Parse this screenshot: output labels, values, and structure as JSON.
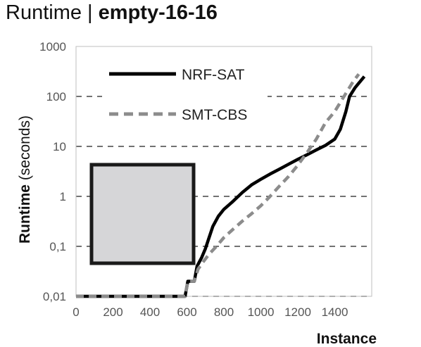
{
  "chart_data": {
    "type": "line",
    "title_plain": "Runtime",
    "title_sep": " | ",
    "title_bold": "empty-16-16",
    "xlabel": "Instance",
    "ylabel_bold": "Runtime",
    "ylabel_plain": " (seconds)",
    "xlim": [
      0,
      1600
    ],
    "ylim": [
      0.01,
      1000
    ],
    "y_scale": "log",
    "x_ticks": [
      "0",
      "200",
      "400",
      "600",
      "800",
      "1000",
      "1200",
      "1400"
    ],
    "x_tick_values": [
      0,
      200,
      400,
      600,
      800,
      1000,
      1200,
      1400
    ],
    "y_ticks": [
      "0,01",
      "0,1",
      "1",
      "10",
      "100",
      "1000"
    ],
    "y_tick_values": [
      0.01,
      0.1,
      1,
      10,
      100,
      1000
    ],
    "grid": "horizontal-dashed",
    "legend_position": "top-left",
    "series": [
      {
        "name": "NRF-SAT",
        "color": "#000000",
        "dash": "solid",
        "points": [
          [
            0,
            0.01
          ],
          [
            590,
            0.01
          ],
          [
            605,
            0.02
          ],
          [
            640,
            0.02
          ],
          [
            655,
            0.04
          ],
          [
            680,
            0.06
          ],
          [
            700,
            0.09
          ],
          [
            720,
            0.15
          ],
          [
            740,
            0.25
          ],
          [
            770,
            0.4
          ],
          [
            800,
            0.55
          ],
          [
            850,
            0.8
          ],
          [
            900,
            1.2
          ],
          [
            950,
            1.7
          ],
          [
            1000,
            2.2
          ],
          [
            1050,
            2.8
          ],
          [
            1100,
            3.5
          ],
          [
            1150,
            4.4
          ],
          [
            1200,
            5.5
          ],
          [
            1250,
            6.8
          ],
          [
            1300,
            8.5
          ],
          [
            1350,
            10.5
          ],
          [
            1400,
            14
          ],
          [
            1430,
            22
          ],
          [
            1460,
            50
          ],
          [
            1480,
            100
          ],
          [
            1510,
            150
          ],
          [
            1560,
            250
          ]
        ]
      },
      {
        "name": "SMT-CBS",
        "color": "#8c8c8c",
        "dash": "dashed",
        "points": [
          [
            0,
            0.01
          ],
          [
            590,
            0.01
          ],
          [
            605,
            0.02
          ],
          [
            640,
            0.02
          ],
          [
            660,
            0.035
          ],
          [
            690,
            0.05
          ],
          [
            720,
            0.07
          ],
          [
            760,
            0.1
          ],
          [
            800,
            0.15
          ],
          [
            850,
            0.22
          ],
          [
            900,
            0.32
          ],
          [
            950,
            0.45
          ],
          [
            1000,
            0.65
          ],
          [
            1050,
            1.0
          ],
          [
            1100,
            1.6
          ],
          [
            1150,
            2.5
          ],
          [
            1200,
            4.2
          ],
          [
            1250,
            7.5
          ],
          [
            1300,
            14
          ],
          [
            1350,
            30
          ],
          [
            1400,
            50
          ],
          [
            1450,
            100
          ],
          [
            1500,
            200
          ],
          [
            1530,
            280
          ]
        ]
      }
    ]
  }
}
